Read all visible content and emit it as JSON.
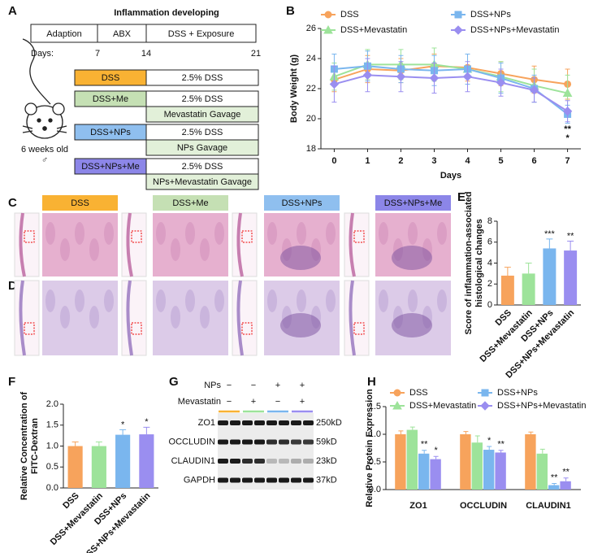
{
  "figure": {
    "panel_labels": [
      "A",
      "B",
      "C",
      "D",
      "E",
      "F",
      "G",
      "H"
    ]
  },
  "schema": {
    "title": "Inflammation developing",
    "phases": [
      "Adaption",
      "ABX",
      "DSS + Exposure"
    ],
    "days_label": "Days:",
    "days": [
      "7",
      "14",
      "21"
    ],
    "mouse_age": "6 weeks old",
    "mouse_sex": "♂",
    "groups": [
      {
        "name": "DSS",
        "color": "#f9b233",
        "treatments": [
          "2.5% DSS"
        ]
      },
      {
        "name": "DSS+Me",
        "color": "#c5e0b4",
        "treatments": [
          "2.5% DSS",
          "Mevastatin Gavage"
        ]
      },
      {
        "name": "DSS+NPs",
        "color": "#8fbfef",
        "treatments": [
          "2.5% DSS",
          "NPs Gavage"
        ]
      },
      {
        "name": "DSS+NPs+Me",
        "color": "#8c86e8",
        "treatments": [
          "2.5% DSS",
          "NPs+Mevastatin Gavage"
        ]
      }
    ]
  },
  "histology": {
    "groups": [
      {
        "name": "DSS",
        "color": "#f9b233"
      },
      {
        "name": "DSS+Me",
        "color": "#c5e0b4"
      },
      {
        "name": "DSS+NPs",
        "color": "#8fbfef"
      },
      {
        "name": "DSS+NPs+Me",
        "color": "#8c86e8"
      }
    ]
  },
  "blot": {
    "conditions": [
      {
        "name": "NPs",
        "signs": [
          "−",
          "−",
          "+",
          "+"
        ]
      },
      {
        "name": "Mevastatin",
        "signs": [
          "−",
          "+",
          "−",
          "+"
        ]
      }
    ],
    "lane_colors": [
      "#f9b233",
      "#9de39a",
      "#7ab6ee",
      "#9a8ef0"
    ],
    "proteins": [
      {
        "name": "ZO1",
        "size": "250kD"
      },
      {
        "name": "OCCLUDIN",
        "size": "59kD"
      },
      {
        "name": "CLAUDIN1",
        "size": "23kD"
      },
      {
        "name": "GAPDH",
        "size": "37kD"
      }
    ]
  },
  "chart_data": [
    {
      "type": "line",
      "xlabel": "Days",
      "ylabel": "Body Weight (g)",
      "x": [
        0,
        1,
        2,
        3,
        4,
        5,
        6,
        7
      ],
      "xlim": [
        -0.4,
        7.4
      ],
      "xticks": [
        0,
        1,
        2,
        3,
        4,
        5,
        6,
        7
      ],
      "ylim": [
        18,
        26
      ],
      "yticks": [
        18,
        20,
        22,
        24,
        26
      ],
      "series": [
        {
          "name": "DSS",
          "color": "#f7a35c",
          "marker": "circle",
          "values": [
            22.6,
            23.3,
            23.2,
            23.5,
            23.4,
            23.0,
            22.6,
            22.3
          ],
          "errors": [
            0.8,
            0.9,
            0.8,
            0.8,
            0.9,
            0.8,
            0.9,
            1.0
          ]
        },
        {
          "name": "DSS+Mevastatin",
          "color": "#9de39a",
          "marker": "triangle",
          "values": [
            22.8,
            23.6,
            23.6,
            23.6,
            23.3,
            22.8,
            22.2,
            21.7
          ],
          "errors": [
            0.9,
            1.0,
            1.0,
            1.1,
            1.0,
            1.0,
            1.1,
            1.2
          ]
        },
        {
          "name": "DSS+NPs",
          "color": "#7ab6ee",
          "marker": "square",
          "values": [
            23.3,
            23.5,
            23.3,
            23.2,
            23.3,
            22.7,
            22.0,
            20.3
          ],
          "errors": [
            1.0,
            1.0,
            0.9,
            1.0,
            1.0,
            1.0,
            0.9,
            0.6
          ]
        },
        {
          "name": "DSS+NPs+Mevastatin",
          "color": "#9a8ef0",
          "marker": "diamond",
          "values": [
            22.3,
            22.9,
            22.8,
            22.7,
            22.8,
            22.4,
            21.9,
            20.5
          ],
          "errors": [
            1.2,
            1.1,
            1.0,
            1.0,
            1.0,
            0.9,
            0.8,
            0.7
          ]
        }
      ],
      "annotations": [
        {
          "text": "**",
          "color": "#7ab6ee",
          "x": 7,
          "y": 19.3
        },
        {
          "text": "*",
          "color": "#9a8ef0",
          "x": 7,
          "y": 18.7
        }
      ]
    },
    {
      "type": "bar",
      "ylabel": [
        "Score of inflammation-associated",
        "histological changes"
      ],
      "categories": [
        "DSS",
        "DSS+Mevastatin",
        "DSS+NPs",
        "DSS+NPs+Mevastatin"
      ],
      "values": [
        2.8,
        3.0,
        5.4,
        5.2
      ],
      "errors": [
        0.8,
        1.0,
        0.9,
        0.9
      ],
      "colors": [
        "#f7a35c",
        "#9de39a",
        "#7ab6ee",
        "#9a8ef0"
      ],
      "significance": [
        null,
        null,
        "***",
        "**"
      ],
      "ylim": [
        0,
        8
      ],
      "yticks": [
        0,
        2,
        4,
        6,
        8
      ]
    },
    {
      "type": "bar",
      "ylabel": [
        "Relative Concentration of",
        "FITC-Dextran"
      ],
      "categories": [
        "DSS",
        "DSS+Mevastatin",
        "DSS+NPs",
        "DSS+NPs+Mevastatin"
      ],
      "values": [
        1.0,
        1.0,
        1.27,
        1.28
      ],
      "errors": [
        0.1,
        0.1,
        0.12,
        0.17
      ],
      "colors": [
        "#f7a35c",
        "#9de39a",
        "#7ab6ee",
        "#9a8ef0"
      ],
      "significance": [
        null,
        null,
        "*",
        "*"
      ],
      "ylim": [
        0,
        2
      ],
      "yticks": [
        {
          "value": 0,
          "label": "0.0"
        },
        {
          "value": 0.5,
          "label": "0.5"
        },
        {
          "value": 1,
          "label": "1.0"
        },
        {
          "value": 1.5,
          "label": "1.5"
        },
        {
          "value": 2,
          "label": "2.0"
        }
      ]
    },
    {
      "type": "grouped_bar",
      "ylabel": "Relative Protein Expression",
      "categories": [
        "ZO1",
        "OCCLUDIN",
        "CLAUDIN1"
      ],
      "series": [
        {
          "name": "DSS",
          "color": "#f7a35c",
          "marker": "circle",
          "values": [
            1.0,
            1.0,
            1.0
          ],
          "errors": [
            0.06,
            0.05,
            0.04
          ],
          "significance": [
            null,
            null,
            null
          ]
        },
        {
          "name": "DSS+Mevastatin",
          "color": "#9de39a",
          "marker": "triangle",
          "values": [
            1.08,
            0.85,
            0.65
          ],
          "errors": [
            0.05,
            0.12,
            0.08
          ],
          "significance": [
            null,
            null,
            null
          ]
        },
        {
          "name": "DSS+NPs",
          "color": "#7ab6ee",
          "marker": "square",
          "values": [
            0.65,
            0.72,
            0.08
          ],
          "errors": [
            0.06,
            0.06,
            0.03
          ],
          "significance": [
            "**",
            "*",
            "**"
          ]
        },
        {
          "name": "DSS+NPs+Mevastatin",
          "color": "#9a8ef0",
          "marker": "diamond",
          "values": [
            0.55,
            0.67,
            0.15
          ],
          "errors": [
            0.05,
            0.04,
            0.06
          ],
          "significance": [
            "*",
            "**",
            "**"
          ]
        }
      ],
      "ylim": [
        0,
        1.5
      ],
      "yticks": [
        {
          "value": 0,
          "label": "0.0"
        },
        {
          "value": 0.5,
          "label": "0.5"
        },
        {
          "value": 1,
          "label": "1.0"
        },
        {
          "value": 1.5,
          "label": "1.5"
        }
      ]
    }
  ]
}
